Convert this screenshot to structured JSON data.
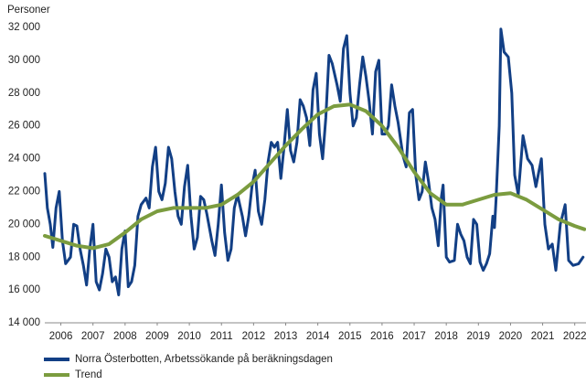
{
  "chart_data": {
    "type": "line",
    "y_label": "Personer",
    "xlim": [
      2006,
      2022.85
    ],
    "ylim": [
      14000,
      32000
    ],
    "xticks": [
      {
        "value": 2006.5,
        "label": "2006"
      },
      {
        "value": 2007.5,
        "label": "2007"
      },
      {
        "value": 2008.5,
        "label": "2008"
      },
      {
        "value": 2009.5,
        "label": "2009"
      },
      {
        "value": 2010.5,
        "label": "2010"
      },
      {
        "value": 2011.5,
        "label": "2011"
      },
      {
        "value": 2012.5,
        "label": "2012"
      },
      {
        "value": 2013.5,
        "label": "2013"
      },
      {
        "value": 2014.5,
        "label": "2014"
      },
      {
        "value": 2015.5,
        "label": "2015"
      },
      {
        "value": 2016.5,
        "label": "2016"
      },
      {
        "value": 2017.5,
        "label": "2017"
      },
      {
        "value": 2018.5,
        "label": "2018"
      },
      {
        "value": 2019.5,
        "label": "2019"
      },
      {
        "value": 2020.5,
        "label": "2020"
      },
      {
        "value": 2021.5,
        "label": "2021"
      },
      {
        "value": 2022.5,
        "label": "2022"
      }
    ],
    "yticks": [
      {
        "value": 14000,
        "label": "14 000"
      },
      {
        "value": 16000,
        "label": "16 000"
      },
      {
        "value": 18000,
        "label": "18 000"
      },
      {
        "value": 20000,
        "label": "20 000"
      },
      {
        "value": 22000,
        "label": "22 000"
      },
      {
        "value": 24000,
        "label": "24 000"
      },
      {
        "value": 26000,
        "label": "26 000"
      },
      {
        "value": 28000,
        "label": "28 000"
      },
      {
        "value": 30000,
        "label": "30 000"
      },
      {
        "value": 32000,
        "label": "32 000"
      }
    ],
    "grid": false,
    "legend": "bottom",
    "series": [
      {
        "name": "Norra Österbotten, Arbetssökande på beräkningsdagen",
        "color": "#123f85",
        "x": [
          2006.0,
          2006.08,
          2006.17,
          2006.25,
          2006.35,
          2006.45,
          2006.55,
          2006.65,
          2006.8,
          2006.9,
          2007.0,
          2007.1,
          2007.2,
          2007.3,
          2007.4,
          2007.5,
          2007.6,
          2007.7,
          2007.8,
          2007.9,
          2008.0,
          2008.1,
          2008.2,
          2008.3,
          2008.4,
          2008.5,
          2008.6,
          2008.7,
          2008.8,
          2008.9,
          2009.0,
          2009.15,
          2009.25,
          2009.35,
          2009.45,
          2009.55,
          2009.65,
          2009.75,
          2009.85,
          2009.95,
          2010.05,
          2010.15,
          2010.25,
          2010.35,
          2010.45,
          2010.55,
          2010.65,
          2010.75,
          2010.85,
          2010.95,
          2011.05,
          2011.2,
          2011.3,
          2011.4,
          2011.5,
          2011.6,
          2011.7,
          2011.8,
          2011.9,
          2012.0,
          2012.15,
          2012.25,
          2012.35,
          2012.45,
          2012.55,
          2012.65,
          2012.75,
          2012.85,
          2012.95,
          2013.05,
          2013.15,
          2013.25,
          2013.35,
          2013.45,
          2013.55,
          2013.65,
          2013.75,
          2013.85,
          2013.95,
          2014.05,
          2014.15,
          2014.25,
          2014.35,
          2014.45,
          2014.55,
          2014.65,
          2014.75,
          2014.85,
          2014.95,
          2015.1,
          2015.2,
          2015.3,
          2015.4,
          2015.5,
          2015.6,
          2015.7,
          2015.8,
          2015.9,
          2016.0,
          2016.1,
          2016.2,
          2016.3,
          2016.4,
          2016.5,
          2016.6,
          2016.7,
          2016.8,
          2016.9,
          2017.0,
          2017.15,
          2017.25,
          2017.35,
          2017.45,
          2017.55,
          2017.65,
          2017.75,
          2017.85,
          2017.95,
          2018.05,
          2018.15,
          2018.25,
          2018.35,
          2018.4,
          2018.5,
          2018.6,
          2018.75,
          2018.85,
          2018.95,
          2019.05,
          2019.15,
          2019.25,
          2019.35,
          2019.45,
          2019.55,
          2019.65,
          2019.75,
          2019.85,
          2019.95,
          2020.0,
          2020.05,
          2020.15,
          2020.2,
          2020.3,
          2020.43,
          2020.54,
          2020.63,
          2020.74,
          2020.89,
          2021.03,
          2021.17,
          2021.29,
          2021.46,
          2021.57,
          2021.68,
          2021.8,
          2021.91,
          2022.05,
          2022.2,
          2022.31,
          2022.45,
          2022.62,
          2022.76
        ],
        "values": [
          23100,
          21000,
          20000,
          18600,
          21000,
          22000,
          19000,
          17600,
          18000,
          20000,
          19900,
          18500,
          17500,
          16300,
          18500,
          20000,
          16500,
          16000,
          17000,
          18500,
          18000,
          16500,
          16800,
          15700,
          18500,
          19600,
          16200,
          16500,
          17500,
          20500,
          21200,
          21600,
          21000,
          23500,
          24700,
          22000,
          21500,
          22500,
          24700,
          24000,
          22000,
          20500,
          20000,
          22300,
          23600,
          20500,
          18500,
          19200,
          21700,
          21500,
          20600,
          19000,
          18100,
          20000,
          22400,
          19500,
          17800,
          18500,
          21000,
          21800,
          20500,
          19300,
          20500,
          22300,
          23300,
          20800,
          20000,
          21500,
          23800,
          25000,
          24700,
          25000,
          22800,
          24700,
          27000,
          24500,
          23800,
          25000,
          27600,
          27200,
          26500,
          24800,
          28200,
          29200,
          25500,
          24000,
          26500,
          30300,
          29800,
          28500,
          27500,
          30700,
          31500,
          28000,
          26000,
          26500,
          28500,
          30200,
          29000,
          27500,
          25500,
          29300,
          30000,
          25500,
          25500,
          26000,
          28500,
          27200,
          26200,
          24200,
          23500,
          26800,
          27000,
          23000,
          21500,
          22000,
          23800,
          22600,
          21000,
          20300,
          18700,
          21700,
          22400,
          18000,
          17700,
          17800,
          20000,
          19400,
          19000,
          18000,
          17600,
          20300,
          20000,
          17700,
          17200,
          17600,
          18200,
          20500,
          19800,
          21500,
          26000,
          31900,
          30500,
          30200,
          28000,
          23000,
          21800,
          25400,
          24000,
          23600,
          22300,
          24000,
          20000,
          18500,
          18800,
          17200,
          20000,
          21200,
          17800,
          17500,
          17600,
          18000
        ]
      },
      {
        "name": "Trend",
        "color": "#7b9c3f",
        "x": [
          2006.0,
          2007.0,
          2007.5,
          2008.0,
          2008.5,
          2009.0,
          2009.5,
          2010.0,
          2011.0,
          2011.5,
          2012.0,
          2012.5,
          2013.0,
          2013.5,
          2014.0,
          2014.5,
          2015.0,
          2015.5,
          2016.0,
          2016.5,
          2017.0,
          2017.5,
          2018.0,
          2018.5,
          2019.0,
          2019.5,
          2020.0,
          2020.5,
          2021.0,
          2021.5,
          2022.0,
          2022.5,
          2022.8
        ],
        "values": [
          19300,
          18700,
          18550,
          18800,
          19500,
          20300,
          20800,
          21000,
          21000,
          21200,
          21800,
          22600,
          23700,
          24800,
          25800,
          26700,
          27200,
          27300,
          26900,
          26000,
          24700,
          23200,
          21900,
          21200,
          21200,
          21500,
          21800,
          21900,
          21500,
          20900,
          20300,
          19900,
          19700
        ]
      }
    ]
  }
}
